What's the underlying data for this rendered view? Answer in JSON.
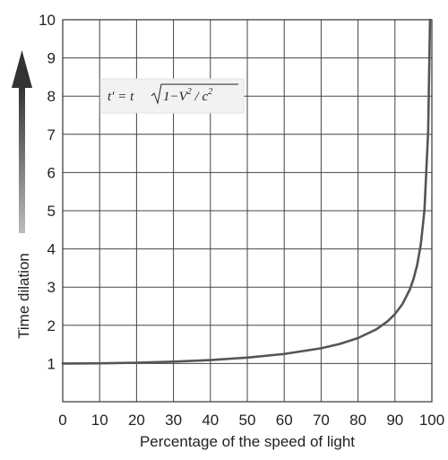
{
  "chart_data": {
    "type": "line",
    "xlabel": "Percentage of the speed of light",
    "ylabel": "Time dilation",
    "xlim": [
      0,
      100
    ],
    "ylim": [
      0,
      10
    ],
    "x_ticks": [
      "0",
      "10",
      "20",
      "30",
      "40",
      "50",
      "60",
      "70",
      "80",
      "90",
      "100"
    ],
    "y_ticks": [
      "1",
      "2",
      "3",
      "4",
      "5",
      "6",
      "7",
      "8",
      "9",
      "10"
    ],
    "grid": true,
    "formula": {
      "lhs": "t′ = t",
      "radicand": "1−V",
      "exp1": "2",
      "div": " / c",
      "exp2": "2"
    },
    "series": [
      {
        "color": "#555555",
        "x": [
          0,
          10,
          20,
          30,
          40,
          50,
          60,
          70,
          75,
          80,
          85,
          88,
          90,
          92,
          94,
          95,
          96,
          97,
          98,
          99,
          99.5
        ],
        "y": [
          1.0,
          1.005,
          1.021,
          1.048,
          1.091,
          1.155,
          1.25,
          1.4,
          1.512,
          1.667,
          1.898,
          2.105,
          2.294,
          2.552,
          2.931,
          3.203,
          3.571,
          4.113,
          5.025,
          7.089,
          10.0
        ]
      }
    ]
  }
}
